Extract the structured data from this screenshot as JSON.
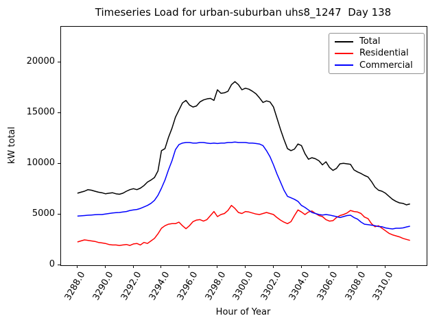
{
  "title": "Timeseries Load for urban-suburban uhs8_1247  Day 138",
  "axes": {
    "xlabel": "Hour of Year",
    "ylabel": "kW total",
    "xlim": [
      3286.83,
      3312.94
    ],
    "ylim": [
      0,
      23513
    ],
    "xticks": [
      "3288.0",
      "3290.0",
      "3292.0",
      "3294.0",
      "3296.0",
      "3298.0",
      "3300.0",
      "3302.0",
      "3304.0",
      "3306.0",
      "3308.0",
      "3310.0"
    ],
    "yticks": [
      "0",
      "5000",
      "10000",
      "15000",
      "20000"
    ],
    "grid": "off"
  },
  "legend": {
    "position": "upper right",
    "items": [
      {
        "label": "Total",
        "color": "#000000"
      },
      {
        "label": "Residential",
        "color": "#ff0000"
      },
      {
        "label": "Commercial",
        "color": "#0000ff"
      }
    ]
  },
  "chart_data": {
    "type": "line",
    "title": "Timeseries Load for urban-suburban uhs8_1247  Day 138",
    "xlabel": "Hour of Year",
    "ylabel": "kW total",
    "x_units": "hour of year, 15-minute resolution, Day 138",
    "x": [
      3288.0,
      3288.25,
      3288.5,
      3288.75,
      3289.0,
      3289.25,
      3289.5,
      3289.75,
      3290.0,
      3290.25,
      3290.5,
      3290.75,
      3291.0,
      3291.25,
      3291.5,
      3291.75,
      3292.0,
      3292.25,
      3292.5,
      3292.75,
      3293.0,
      3293.25,
      3293.5,
      3293.75,
      3294.0,
      3294.25,
      3294.5,
      3294.75,
      3295.0,
      3295.25,
      3295.5,
      3295.75,
      3296.0,
      3296.25,
      3296.5,
      3296.75,
      3297.0,
      3297.25,
      3297.5,
      3297.75,
      3298.0,
      3298.25,
      3298.5,
      3298.75,
      3299.0,
      3299.25,
      3299.5,
      3299.75,
      3300.0,
      3300.25,
      3300.5,
      3300.75,
      3301.0,
      3301.25,
      3301.5,
      3301.75,
      3302.0,
      3302.25,
      3302.5,
      3302.75,
      3303.0,
      3303.25,
      3303.5,
      3303.75,
      3304.0,
      3304.25,
      3304.5,
      3304.75,
      3305.0,
      3305.25,
      3305.5,
      3305.75,
      3306.0,
      3306.25,
      3306.5,
      3306.75,
      3307.0,
      3307.25,
      3307.5,
      3307.75,
      3308.0,
      3308.25,
      3308.5,
      3308.75,
      3309.0,
      3309.25,
      3309.5,
      3309.75,
      3310.0,
      3310.25,
      3310.5,
      3310.75,
      3311.0,
      3311.25,
      3311.5,
      3311.75
    ],
    "series": [
      {
        "name": "Total",
        "color": "#000000",
        "values": [
          7100,
          7200,
          7300,
          7450,
          7400,
          7300,
          7200,
          7150,
          7050,
          7100,
          7150,
          7050,
          7000,
          7100,
          7300,
          7450,
          7550,
          7450,
          7600,
          7850,
          8200,
          8400,
          8650,
          9300,
          11300,
          11500,
          12600,
          13500,
          14600,
          15300,
          16000,
          16250,
          15800,
          15600,
          15700,
          16100,
          16300,
          16400,
          16450,
          16250,
          17300,
          16950,
          17000,
          17150,
          17800,
          18100,
          17800,
          17300,
          17450,
          17350,
          17150,
          16900,
          16500,
          16050,
          16200,
          16100,
          15600,
          14500,
          13400,
          12400,
          11500,
          11300,
          11450,
          11950,
          11800,
          11000,
          10450,
          10600,
          10500,
          10300,
          9900,
          10200,
          9650,
          9350,
          9550,
          10000,
          10050,
          10000,
          9950,
          9400,
          9200,
          9050,
          8850,
          8700,
          8250,
          7700,
          7400,
          7300,
          7100,
          6800,
          6500,
          6300,
          6150,
          6100,
          5950,
          6050
        ]
      },
      {
        "name": "Residential",
        "color": "#ff0000",
        "values": [
          2300,
          2400,
          2500,
          2450,
          2400,
          2350,
          2250,
          2200,
          2150,
          2050,
          2000,
          2000,
          1950,
          2000,
          2050,
          1950,
          2100,
          2150,
          2000,
          2250,
          2150,
          2400,
          2650,
          3100,
          3650,
          3900,
          4050,
          4100,
          4100,
          4250,
          3900,
          3600,
          3900,
          4300,
          4450,
          4500,
          4350,
          4500,
          4900,
          5300,
          4800,
          5000,
          5100,
          5400,
          5900,
          5600,
          5200,
          5100,
          5300,
          5250,
          5150,
          5050,
          5000,
          5100,
          5200,
          5100,
          5000,
          4700,
          4450,
          4250,
          4100,
          4300,
          4900,
          5450,
          5250,
          5000,
          5250,
          5350,
          5100,
          4900,
          4800,
          4500,
          4350,
          4400,
          4700,
          4900,
          5000,
          5150,
          5400,
          5300,
          5250,
          5100,
          4750,
          4600,
          4100,
          3800,
          3900,
          3650,
          3400,
          3150,
          3000,
          2900,
          2800,
          2650,
          2550,
          2450
        ]
      },
      {
        "name": "Commercial",
        "color": "#0000ff",
        "values": [
          4850,
          4870,
          4900,
          4930,
          4950,
          4980,
          5000,
          5000,
          5050,
          5100,
          5150,
          5180,
          5200,
          5250,
          5300,
          5400,
          5450,
          5500,
          5600,
          5750,
          5900,
          6100,
          6400,
          6900,
          7600,
          8400,
          9400,
          10300,
          11400,
          11900,
          12050,
          12100,
          12100,
          12050,
          12050,
          12100,
          12100,
          12050,
          12000,
          12050,
          12000,
          12050,
          12050,
          12100,
          12100,
          12150,
          12100,
          12100,
          12100,
          12050,
          12050,
          12000,
          11950,
          11800,
          11300,
          10700,
          9900,
          9000,
          8200,
          7400,
          6800,
          6650,
          6500,
          6300,
          5900,
          5700,
          5450,
          5200,
          5100,
          5000,
          4950,
          5000,
          4950,
          4870,
          4800,
          4700,
          4800,
          4900,
          4930,
          4700,
          4550,
          4260,
          4050,
          4000,
          3950,
          3900,
          3820,
          3800,
          3680,
          3620,
          3580,
          3650,
          3650,
          3680,
          3780,
          3850
        ]
      }
    ]
  }
}
